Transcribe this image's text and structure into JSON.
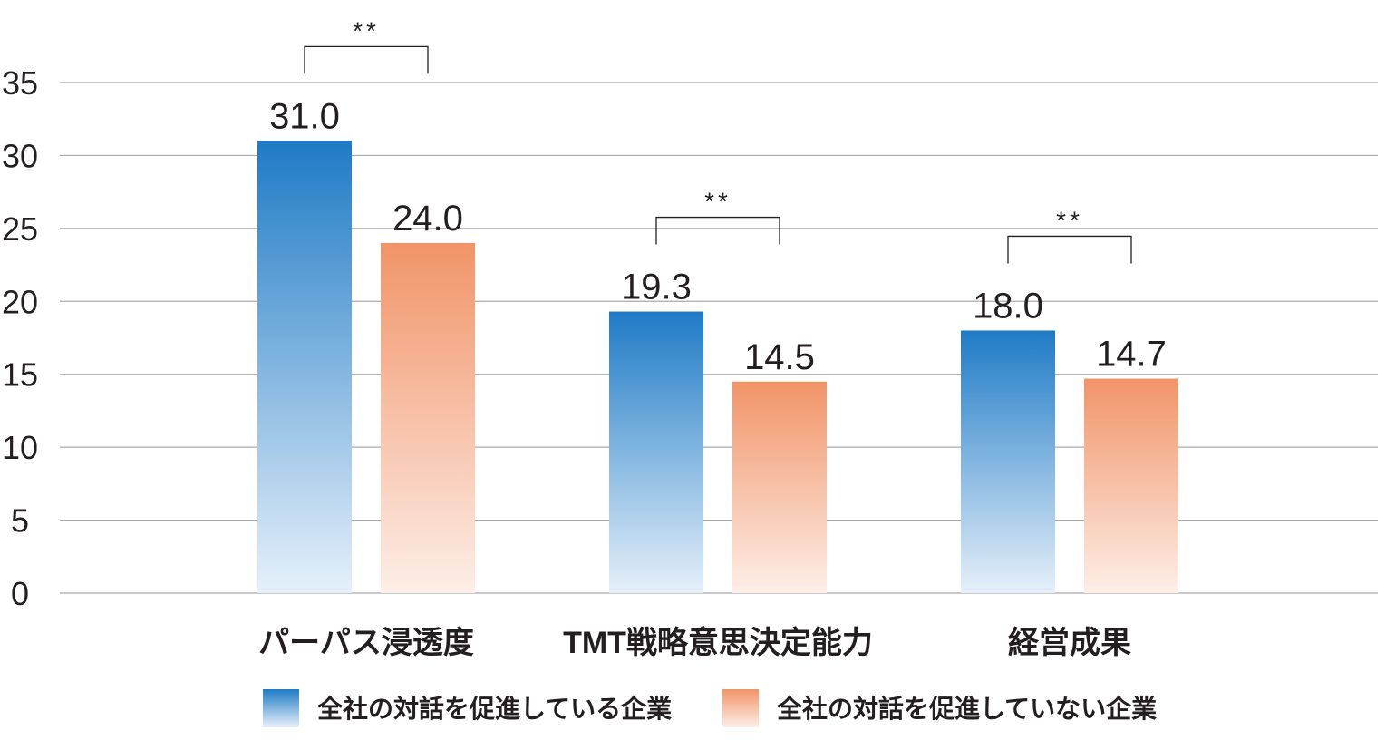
{
  "colors": {
    "series_1": "#1f7bc6",
    "series_2": "#f19468",
    "grid": "#a7a9ac",
    "text": "#231f20"
  },
  "chart_data": {
    "type": "bar",
    "title": "",
    "xlabel": "",
    "ylabel": "",
    "ylim": [
      0,
      35
    ],
    "yticks": [
      "0",
      "5",
      "10",
      "15",
      "20",
      "25",
      "30",
      "35"
    ],
    "grid": true,
    "legend_position": "bottom",
    "categories": [
      "パーパス浸透度",
      "TMT戦略意思決定能力",
      "経営成果"
    ],
    "series": [
      {
        "name": "全社の対話を促進している企業",
        "values": [
          31.0,
          19.3,
          18.0
        ],
        "labels": [
          "31.0",
          "19.3",
          "18.0"
        ]
      },
      {
        "name": "全社の対話を促進していない企業",
        "values": [
          24.0,
          14.5,
          14.7
        ],
        "labels": [
          "24.0",
          "14.5",
          "14.7"
        ]
      }
    ],
    "significance": [
      "**",
      "**",
      "**"
    ]
  }
}
